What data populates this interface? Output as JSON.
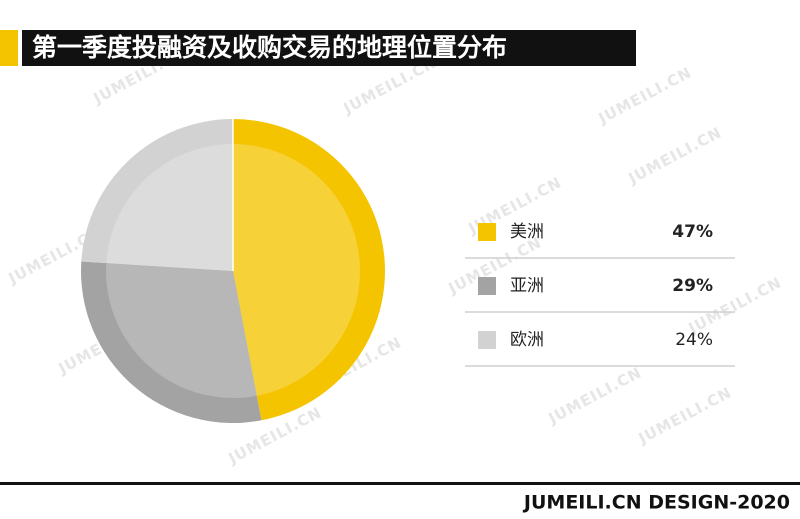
{
  "chart_data": {
    "type": "pie",
    "title": "第一季度投融资及收购交易的地理位置分布",
    "categories": [
      "美洲",
      "亚洲",
      "欧洲"
    ],
    "values": [
      47,
      29,
      24
    ],
    "value_labels": [
      "47%",
      "29%",
      "24%"
    ],
    "colors": [
      "#f5c400",
      "#a3a3a3",
      "#d2d2d2"
    ],
    "watermark": "JUMEILI.CN",
    "footer": "JUMEILI.CN DESIGN-2020"
  }
}
